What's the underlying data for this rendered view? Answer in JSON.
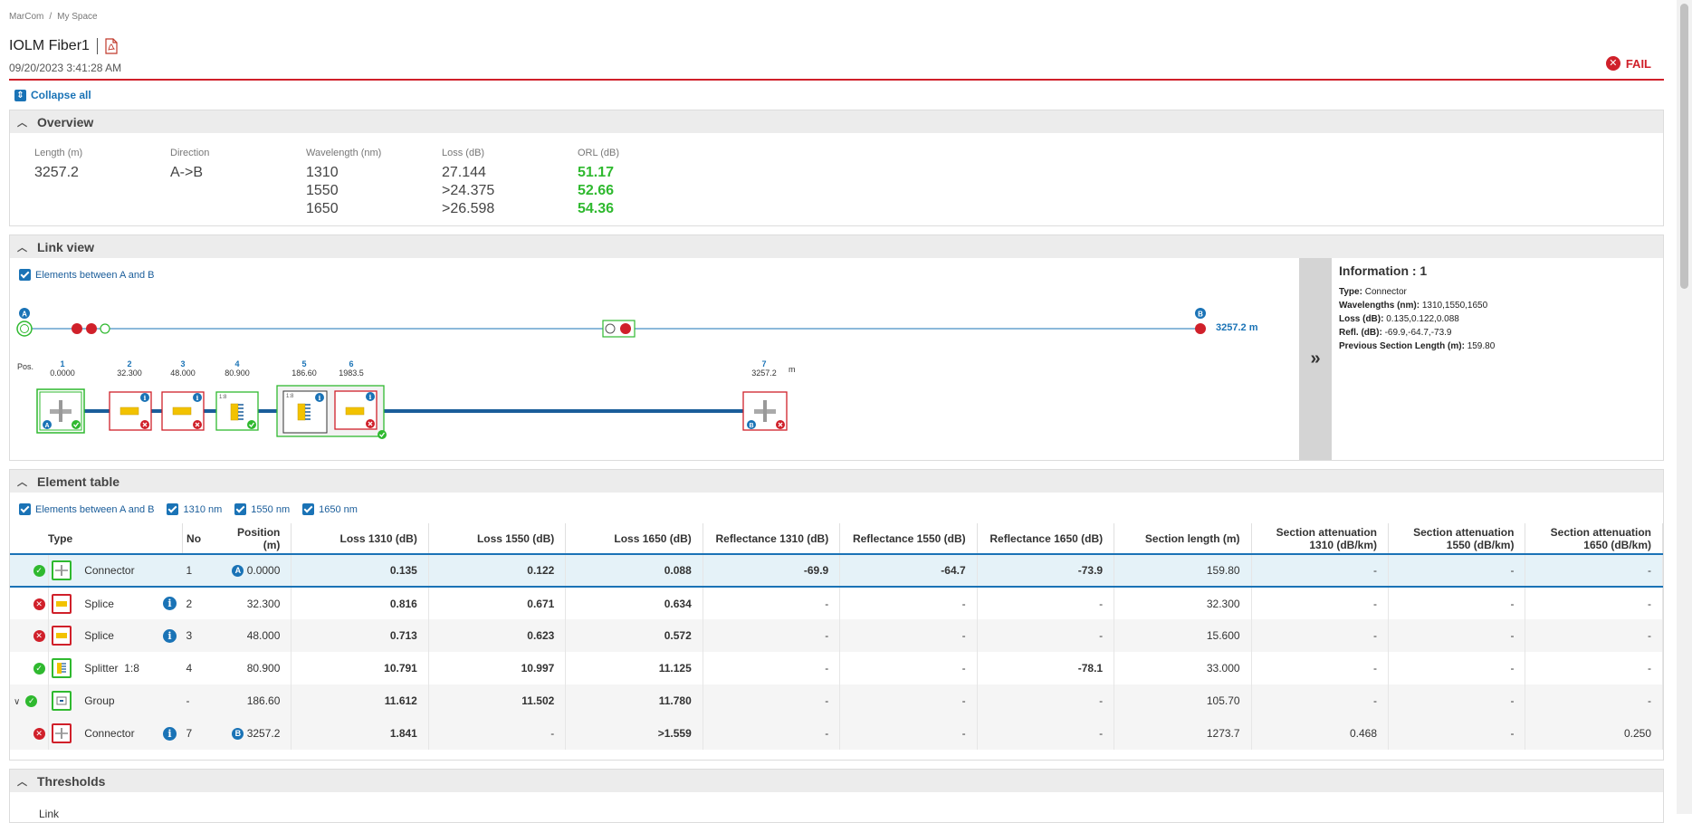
{
  "breadcrumb": [
    "MarCom",
    "My Space"
  ],
  "title": "IOLM Fiber1",
  "datetime": "09/20/2023 3:41:28 AM",
  "status": "FAIL",
  "collapse_all": "Collapse all",
  "colors": {
    "fail": "#d0202a",
    "pass": "#2fb92f",
    "accent": "#1a73b6"
  },
  "overview": {
    "title": "Overview",
    "length_label": "Length (m)",
    "length": "3257.2",
    "direction_label": "Direction",
    "direction": "A->B",
    "wavelength_label": "Wavelength (nm)",
    "wavelengths": [
      "1310",
      "1550",
      "1650"
    ],
    "loss_label": "Loss (dB)",
    "losses": [
      "27.144",
      ">24.375",
      ">26.598"
    ],
    "orl_label": "ORL (dB)",
    "orls": [
      "51.17",
      "52.66",
      "54.36"
    ]
  },
  "link_view": {
    "title": "Link view",
    "filter": "Elements between A and B",
    "end_a": "A",
    "end_b": "B",
    "total_length": "3257.2 m",
    "pos_label": "Pos.",
    "unit": "m",
    "positions": [
      {
        "n": "1",
        "v": "0.0000"
      },
      {
        "n": "2",
        "v": "32.300"
      },
      {
        "n": "3",
        "v": "48.000"
      },
      {
        "n": "4",
        "v": "80.900"
      },
      {
        "n": "5",
        "v": "186.60"
      },
      {
        "n": "6",
        "v": "1983.5"
      },
      {
        "n": "7",
        "v": "3257.2"
      }
    ],
    "ratio_4": "1:8",
    "ratio_5": "1:8",
    "info": {
      "title": "Information : 1",
      "type_label": "Type:",
      "type": "Connector",
      "wl_label": "Wavelengths (nm):",
      "wl": "1310,1550,1650",
      "loss_label": "Loss (dB):",
      "loss": "0.135,0.122,0.088",
      "refl_label": "Refl. (dB):",
      "refl": "-69.9,-64.7,-73.9",
      "prev_label": "Previous Section Length (m):",
      "prev": "159.80"
    }
  },
  "element_table": {
    "title": "Element table",
    "filters": [
      "Elements between A and B",
      "1310 nm",
      "1550 nm",
      "1650 nm"
    ],
    "headers": {
      "type": "Type",
      "no": "No",
      "position": "Position (m)",
      "loss1310": "Loss 1310 (dB)",
      "loss1550": "Loss 1550 (dB)",
      "loss1650": "Loss 1650 (dB)",
      "refl1310": "Reflectance 1310 (dB)",
      "refl1550": "Reflectance 1550 (dB)",
      "refl1650": "Reflectance 1650 (dB)",
      "section": "Section length (m)",
      "att1310": "Section attenuation 1310 (dB/km)",
      "att1550": "Section attenuation 1550 (dB/km)",
      "att1650": "Section attenuation 1650 (dB/km)"
    },
    "rows": [
      {
        "status": "pass",
        "type": "Connector",
        "info": false,
        "no": "1",
        "marker": "A",
        "pos": "0.0000",
        "l1": "0.135",
        "l2": "0.122",
        "l3": "0.088",
        "r1": "-69.9",
        "r2": "-64.7",
        "r3": "-73.9",
        "sec": "159.80",
        "a1": "-",
        "a2": "-",
        "a3": "-"
      },
      {
        "status": "fail",
        "type": "Splice",
        "info": true,
        "no": "2",
        "marker": "",
        "pos": "32.300",
        "l1": "0.816",
        "l2": "0.671",
        "l3": "0.634",
        "r1": "-",
        "r2": "-",
        "r3": "-",
        "sec": "32.300",
        "a1": "-",
        "a2": "-",
        "a3": "-"
      },
      {
        "status": "fail",
        "type": "Splice",
        "info": true,
        "no": "3",
        "marker": "",
        "pos": "48.000",
        "l1": "0.713",
        "l2": "0.623",
        "l3": "0.572",
        "r1": "-",
        "r2": "-",
        "r3": "-",
        "sec": "15.600",
        "a1": "-",
        "a2": "-",
        "a3": "-"
      },
      {
        "status": "pass",
        "type": "Splitter  1:8",
        "info": false,
        "no": "4",
        "marker": "",
        "pos": "80.900",
        "l1": "10.791",
        "l2": "10.997",
        "l3": "11.125",
        "r1": "-",
        "r2": "-",
        "r3": "-78.1",
        "sec": "33.000",
        "a1": "-",
        "a2": "-",
        "a3": "-"
      },
      {
        "status": "pass",
        "type": "Group",
        "info": false,
        "no": "-",
        "marker": "",
        "pos": "186.60",
        "l1": "11.612",
        "l2": "11.502",
        "l3": "11.780",
        "r1": "-",
        "r2": "-",
        "r3": "-",
        "sec": "105.70",
        "a1": "-",
        "a2": "-",
        "a3": "-"
      },
      {
        "status": "fail",
        "type": "Connector",
        "info": true,
        "no": "7",
        "marker": "B",
        "pos": "3257.2",
        "l1": "1.841",
        "l2": "-",
        "l3": ">1.559",
        "r1": "-",
        "r2": "-",
        "r3": "-",
        "sec": "1273.7",
        "a1": "0.468",
        "a2": "-",
        "a3": "0.250"
      }
    ]
  },
  "thresholds": {
    "title": "Thresholds",
    "sub": "Link"
  }
}
